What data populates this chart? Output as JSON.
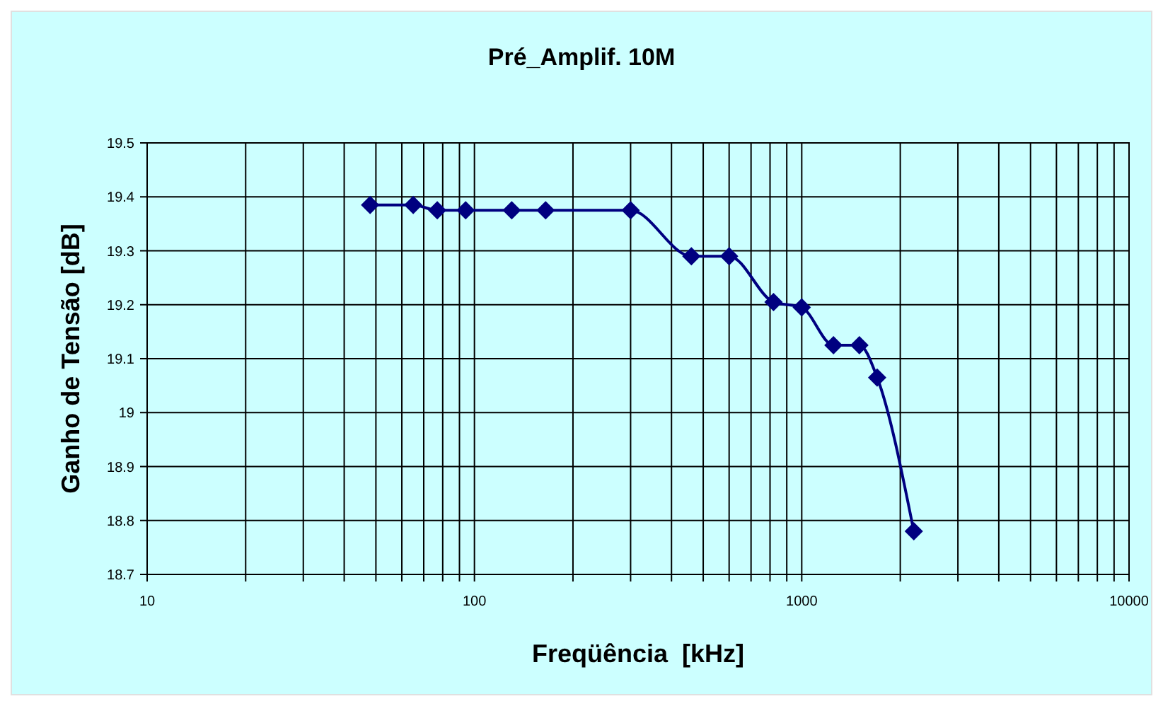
{
  "chart_data": {
    "type": "line",
    "title": "Pré_Amplif. 10M",
    "xlabel": "Freqüência  [kHz]",
    "ylabel": "Ganho de Tensão [dB]",
    "x": [
      48,
      65,
      77,
      94,
      130,
      165,
      300,
      460,
      600,
      820,
      1000,
      1250,
      1500,
      1700,
      2200
    ],
    "series": [
      {
        "color": "#000080",
        "values": [
          19.385,
          19.385,
          19.375,
          19.375,
          19.375,
          19.375,
          19.375,
          19.29,
          19.29,
          19.205,
          19.195,
          19.125,
          19.125,
          19.065,
          18.78
        ]
      }
    ],
    "log": "x",
    "xlim": [
      10,
      10000
    ],
    "xticks": [
      10,
      {
        "value": 20,
        "label": null
      },
      {
        "value": 30,
        "label": null
      },
      {
        "value": 40,
        "label": null
      },
      {
        "value": 50,
        "label": null
      },
      {
        "value": 60,
        "label": null
      },
      {
        "value": 70,
        "label": null
      },
      {
        "value": 80,
        "label": null
      },
      {
        "value": 90,
        "label": null
      },
      100,
      {
        "value": 200,
        "label": null
      },
      {
        "value": 300,
        "label": null
      },
      {
        "value": 400,
        "label": null
      },
      {
        "value": 500,
        "label": null
      },
      {
        "value": 600,
        "label": null
      },
      {
        "value": 700,
        "label": null
      },
      {
        "value": 800,
        "label": null
      },
      {
        "value": 900,
        "label": null
      },
      1000,
      {
        "value": 2000,
        "label": null
      },
      {
        "value": 3000,
        "label": null
      },
      {
        "value": 4000,
        "label": null
      },
      {
        "value": 5000,
        "label": null
      },
      {
        "value": 6000,
        "label": null
      },
      {
        "value": 7000,
        "label": null
      },
      {
        "value": 8000,
        "label": null
      },
      {
        "value": 9000,
        "label": null
      },
      10000
    ],
    "ylim": [
      18.7,
      19.5
    ],
    "yticks": [
      18.7,
      18.8,
      18.9,
      19,
      19.1,
      19.2,
      19.3,
      19.4,
      19.5
    ],
    "grid": true,
    "marker": "diamond",
    "line_style": "solid"
  }
}
